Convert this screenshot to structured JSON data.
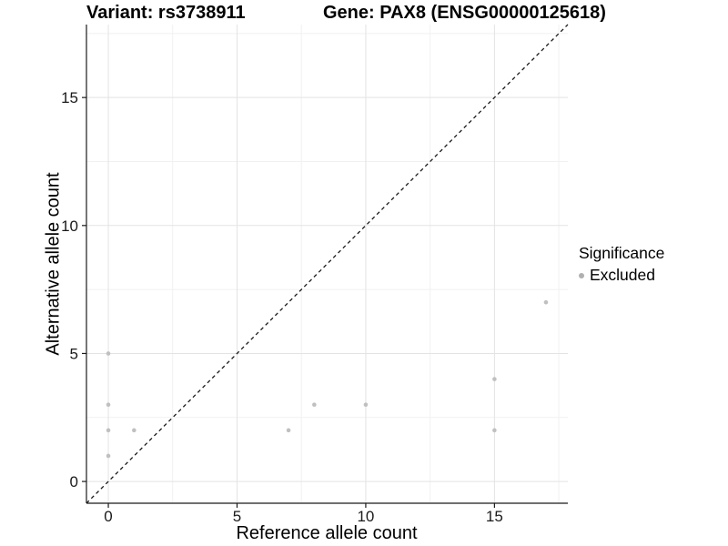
{
  "chart_data": {
    "type": "scatter",
    "title_left": "Variant: rs3738911",
    "title_right": "Gene: PAX8 (ENSG00000125618)",
    "xlabel": "Reference allele count",
    "ylabel": "Alternative allele count",
    "xlim": [
      -0.85,
      17.85
    ],
    "ylim": [
      -0.85,
      17.85
    ],
    "x_ticks": [
      0,
      5,
      10,
      15
    ],
    "y_ticks": [
      0,
      5,
      10,
      15
    ],
    "x_minor_ticks": [
      2.5,
      7.5,
      12.5,
      17.5
    ],
    "y_minor_ticks": [
      2.5,
      7.5,
      12.5,
      17.5
    ],
    "grid": "on",
    "identity_line": {
      "style": "dashed",
      "equation": "y = x"
    },
    "series": [
      {
        "name": "Excluded",
        "color": "#c0c0c0",
        "points": [
          [
            0,
            1
          ],
          [
            0,
            2
          ],
          [
            0,
            3
          ],
          [
            0,
            5
          ],
          [
            1,
            2
          ],
          [
            7,
            2
          ],
          [
            8,
            3
          ],
          [
            10,
            3
          ],
          [
            15,
            2
          ],
          [
            15,
            4
          ],
          [
            17,
            7
          ]
        ]
      }
    ],
    "legend": {
      "position": "right",
      "title": "Significance",
      "entries": [
        {
          "label": "Excluded",
          "color": "#b0b0b0"
        }
      ]
    },
    "colors": {
      "axis": "#1a1a1a",
      "grid_major": "#e3e3e3",
      "grid_minor": "#f1f1f1",
      "identity_line": "#1a1a1a",
      "background": "#ffffff"
    }
  }
}
